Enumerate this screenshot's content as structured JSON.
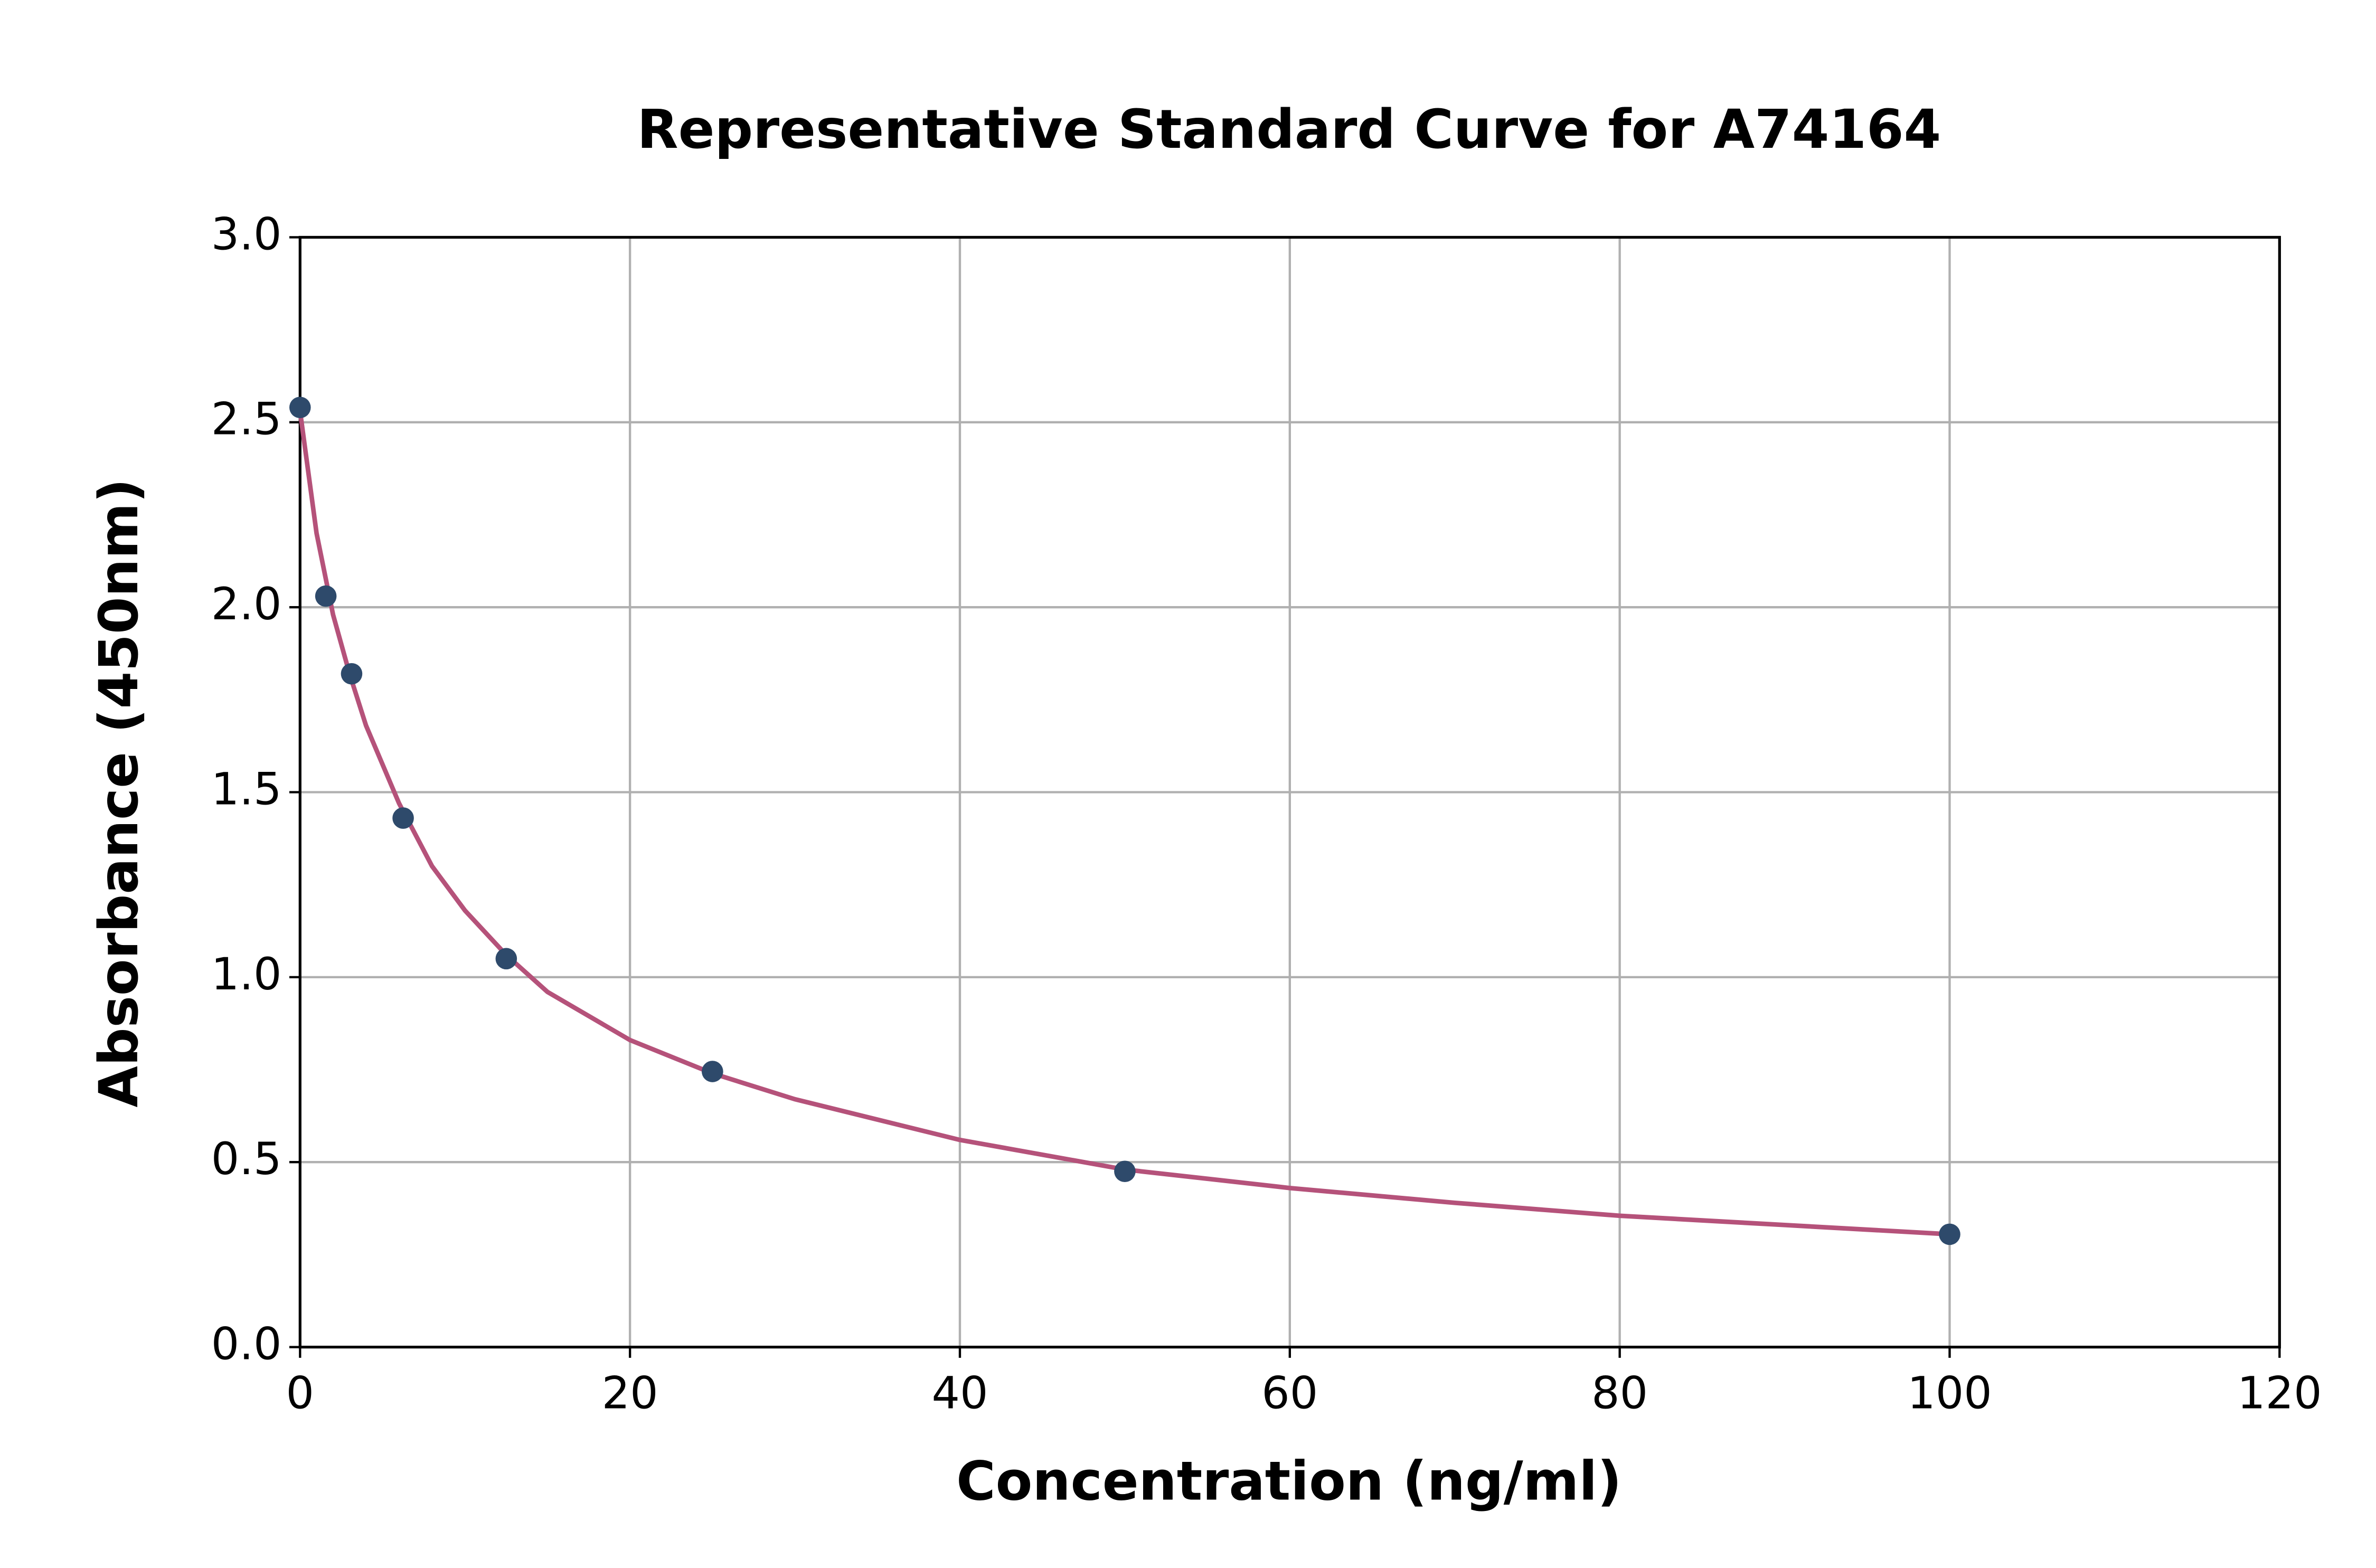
{
  "chart_data": {
    "type": "scatter",
    "title": "Representative Standard Curve for A74164",
    "x_label": "Concentration (ng/ml)",
    "y_label": "Absorbance (450nm)",
    "xlim": [
      0,
      120
    ],
    "xticks": [
      0,
      20,
      40,
      60,
      80,
      100,
      120
    ],
    "ylim": [
      0,
      3
    ],
    "yticks": [
      {
        "value": 0,
        "label": "0.0"
      },
      0.5,
      {
        "value": 1,
        "label": "1.0"
      },
      1.5,
      {
        "value": 2,
        "label": "2.0"
      },
      2.5,
      {
        "value": 3,
        "label": "3.0"
      }
    ],
    "grid": true,
    "series": [
      {
        "style": "markers",
        "color": "#2e4a6b",
        "x": [
          0,
          1.5625,
          3.125,
          6.25,
          12.5,
          25,
          50,
          100
        ],
        "values": [
          2.54,
          2.03,
          1.82,
          1.43,
          1.05,
          0.745,
          0.475,
          0.305
        ]
      },
      {
        "style": "line",
        "color": "#b5527a",
        "x": [
          0,
          1,
          2,
          3,
          4,
          6,
          8,
          10,
          12.5,
          15,
          20,
          25,
          30,
          40,
          50,
          60,
          70,
          80,
          90,
          100
        ],
        "values": [
          2.53,
          2.2,
          1.98,
          1.82,
          1.68,
          1.47,
          1.3,
          1.18,
          1.06,
          0.96,
          0.83,
          0.74,
          0.67,
          0.56,
          0.48,
          0.43,
          0.39,
          0.355,
          0.33,
          0.305
        ]
      }
    ]
  }
}
